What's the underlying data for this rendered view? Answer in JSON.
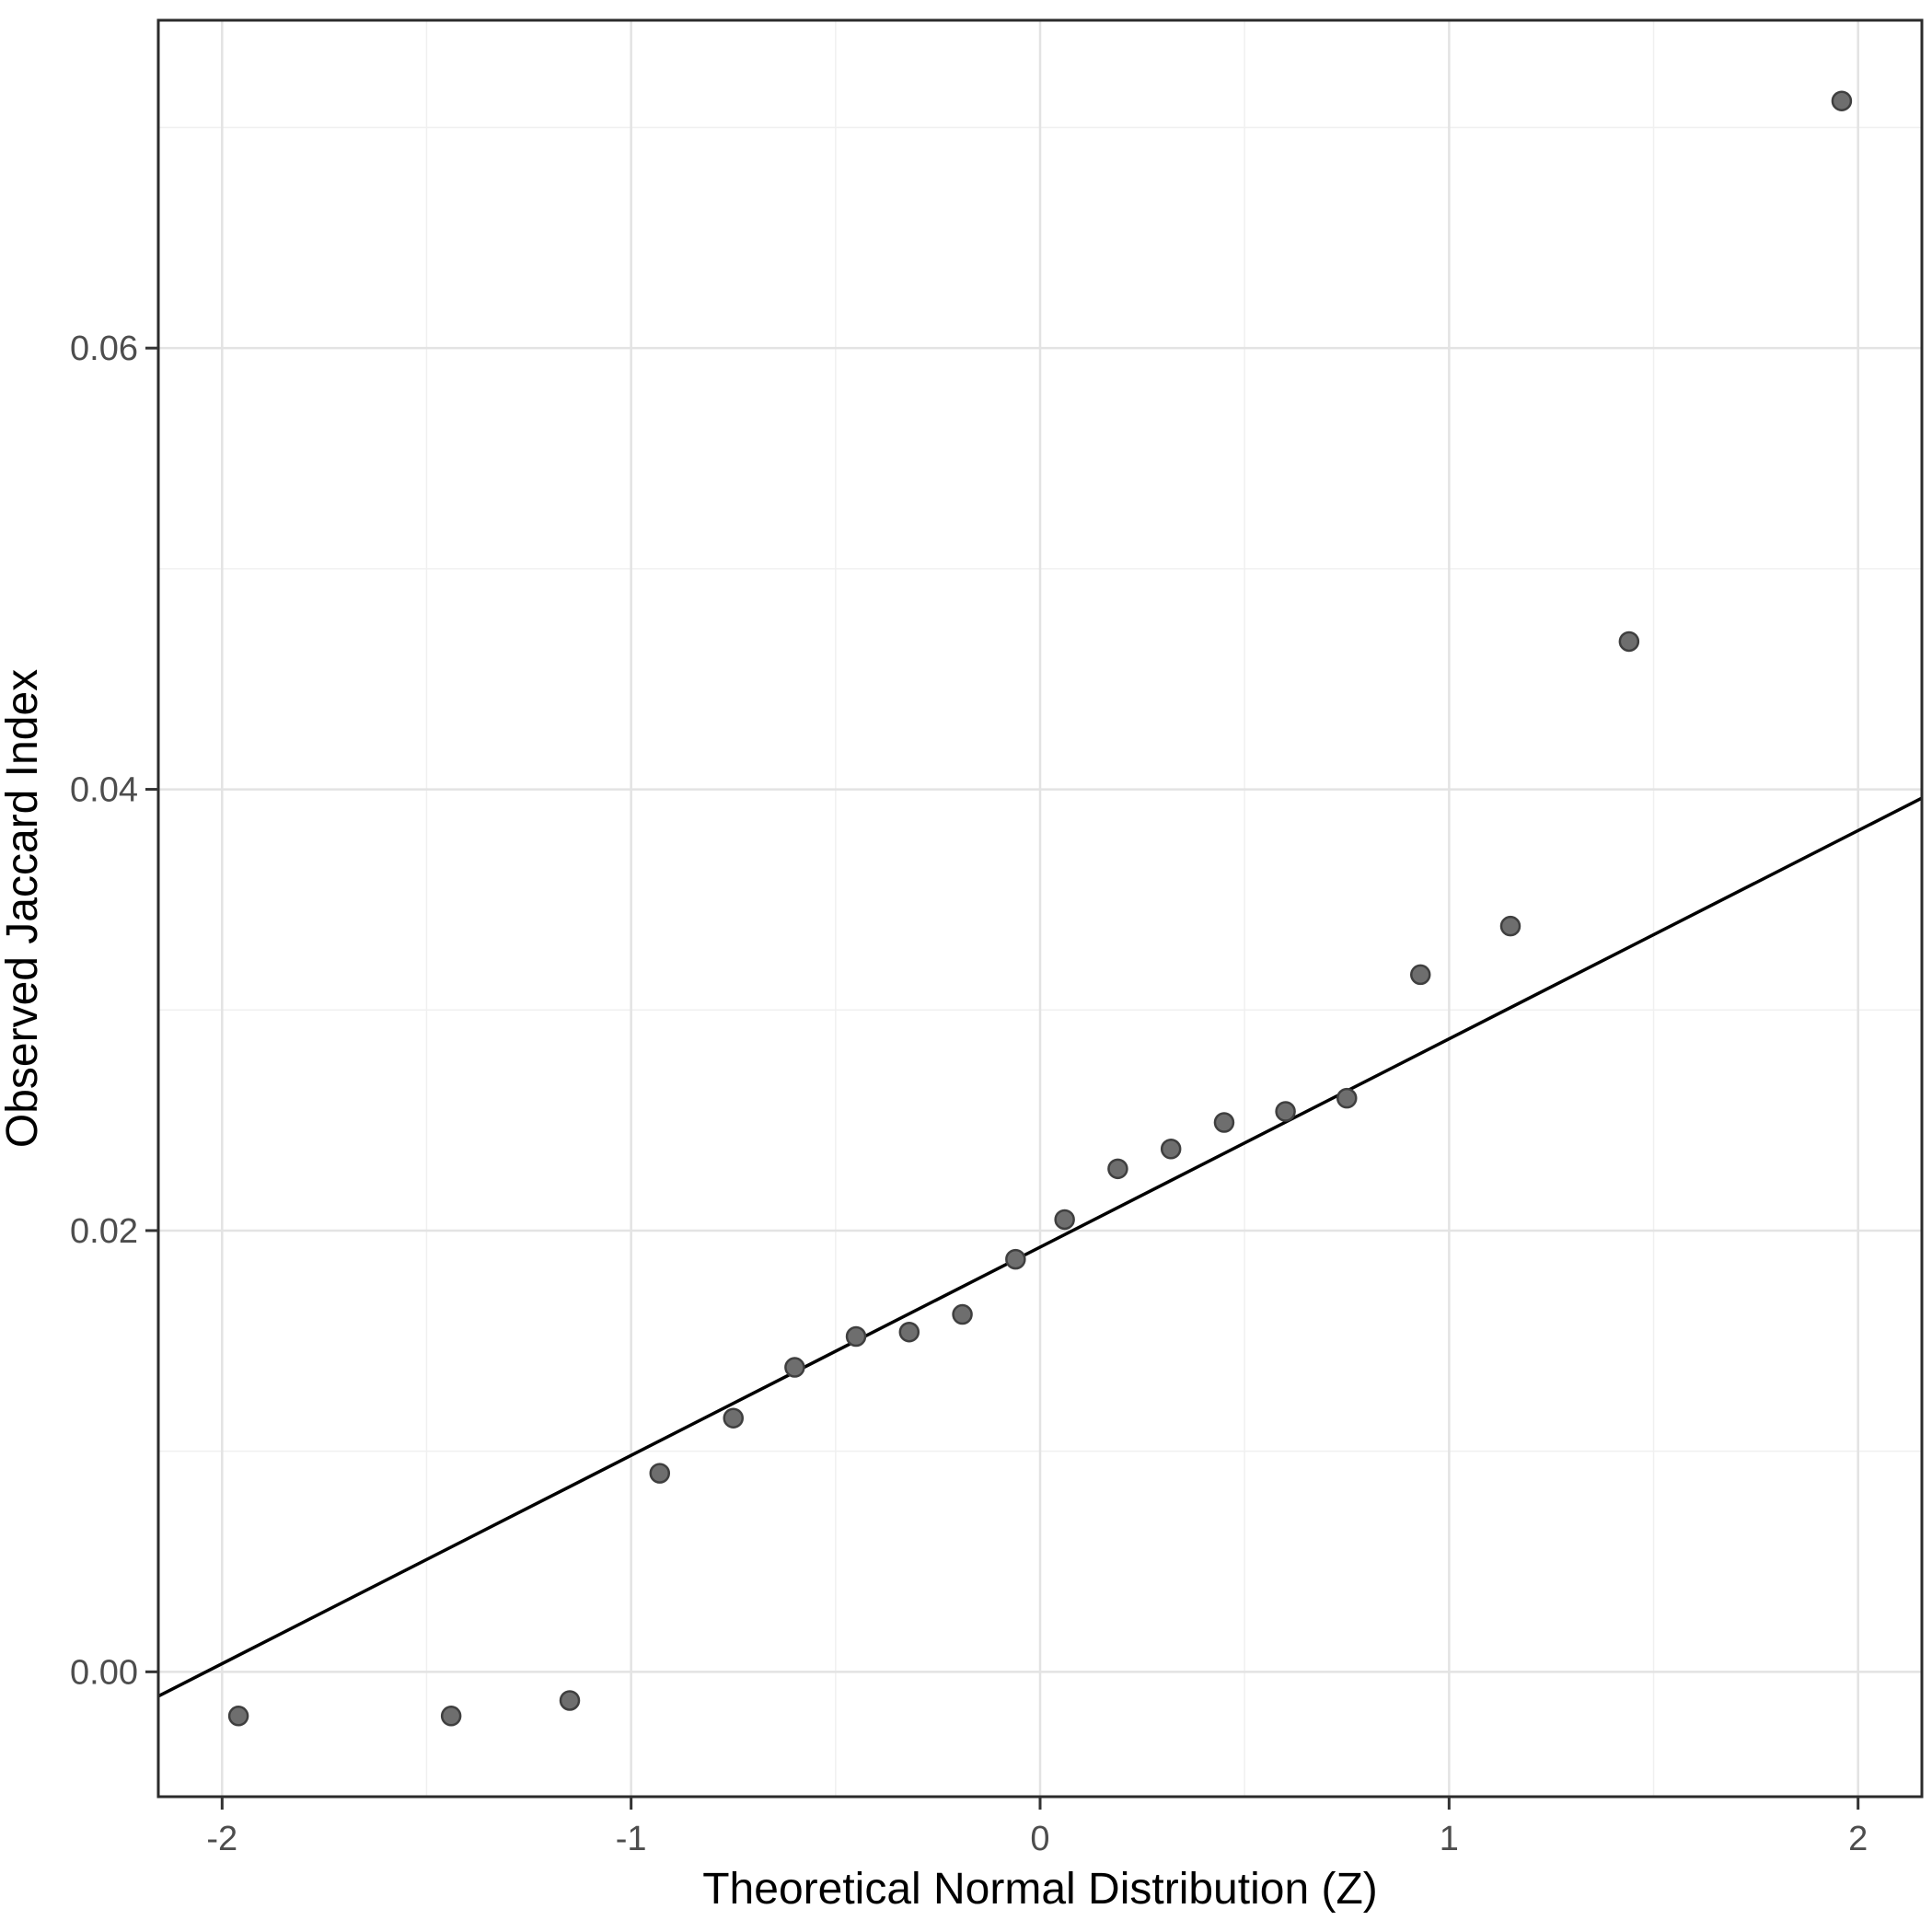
{
  "chart_data": {
    "type": "scatter",
    "title": "",
    "xlabel": "Theoretical Normal Distribution (Z)",
    "ylabel": "Observed Jaccard Index",
    "xlim": [
      -2.156,
      2.156
    ],
    "ylim": [
      -0.00566,
      0.07486
    ],
    "x_ticks": [
      {
        "v": -2,
        "label": "-2"
      },
      {
        "v": -1,
        "label": "-1"
      },
      {
        "v": 0,
        "label": "0"
      },
      {
        "v": 1,
        "label": "1"
      },
      {
        "v": 2,
        "label": "2"
      }
    ],
    "y_ticks": [
      {
        "v": 0.0,
        "label": "0.00"
      },
      {
        "v": 0.02,
        "label": "0.02"
      },
      {
        "v": 0.04,
        "label": "0.04"
      },
      {
        "v": 0.06,
        "label": "0.06"
      }
    ],
    "x_minor": [
      -1.5,
      -0.5,
      0.5,
      1.5
    ],
    "y_minor": [
      0.01,
      0.03,
      0.05,
      0.07
    ],
    "grid": "on",
    "legend": "none",
    "points": [
      {
        "x": -1.96,
        "y": -0.002
      },
      {
        "x": -1.44,
        "y": -0.002
      },
      {
        "x": -1.15,
        "y": -0.0013
      },
      {
        "x": -0.93,
        "y": 0.009
      },
      {
        "x": -0.75,
        "y": 0.0115
      },
      {
        "x": -0.6,
        "y": 0.0138
      },
      {
        "x": -0.45,
        "y": 0.0152
      },
      {
        "x": -0.32,
        "y": 0.0154
      },
      {
        "x": -0.19,
        "y": 0.0162
      },
      {
        "x": -0.06,
        "y": 0.0187
      },
      {
        "x": 0.06,
        "y": 0.0205
      },
      {
        "x": 0.19,
        "y": 0.0228
      },
      {
        "x": 0.32,
        "y": 0.0237
      },
      {
        "x": 0.45,
        "y": 0.0249
      },
      {
        "x": 0.6,
        "y": 0.0254
      },
      {
        "x": 0.75,
        "y": 0.026
      },
      {
        "x": 0.93,
        "y": 0.0316
      },
      {
        "x": 1.15,
        "y": 0.0338
      },
      {
        "x": 1.44,
        "y": 0.0467
      },
      {
        "x": 1.96,
        "y": 0.0712
      }
    ],
    "ref_line": {
      "intercept": 0.01925,
      "slope": 0.00944
    },
    "style": {
      "background": "#ffffff",
      "panel_background": "#ffffff",
      "grid_major": "#e3e3e3",
      "grid_minor": "#f0f0f0",
      "panel_border": "#2b2b2b",
      "line_color": "#000000",
      "line_width": 3.5,
      "point_fill": "#6e6e6e",
      "point_stroke": "#3f3f3f",
      "point_radius": 10,
      "tick_color": "#333333",
      "tick_label_color": "#4d4d4d",
      "axis_title_color": "#000000"
    }
  }
}
